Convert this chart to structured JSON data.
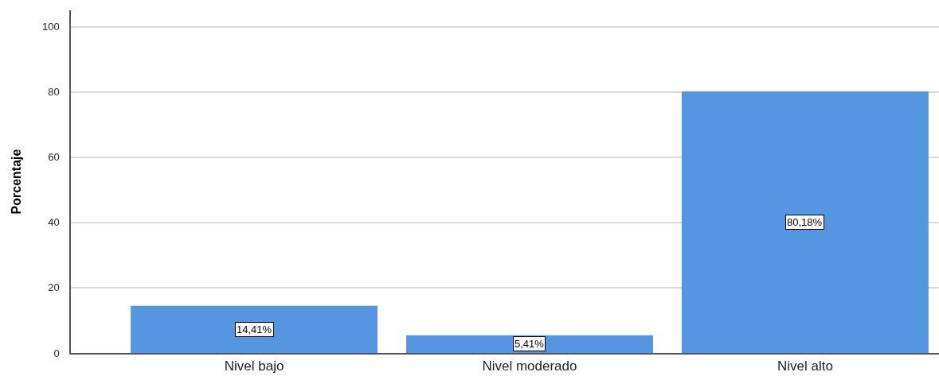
{
  "chart_data": {
    "type": "bar",
    "ylabel": "Porcentaje",
    "categories": [
      "Nivel bajo",
      "Nivel moderado",
      "Nivel alto"
    ],
    "values": [
      14.41,
      5.41,
      80.18
    ],
    "color": "#5596e3",
    "value_labels": [
      "14,41%",
      "5,41%",
      "80,18%"
    ],
    "ylim": [
      0,
      105
    ],
    "yticks": [
      0,
      20,
      40,
      60,
      80,
      100
    ],
    "grid": "y"
  }
}
